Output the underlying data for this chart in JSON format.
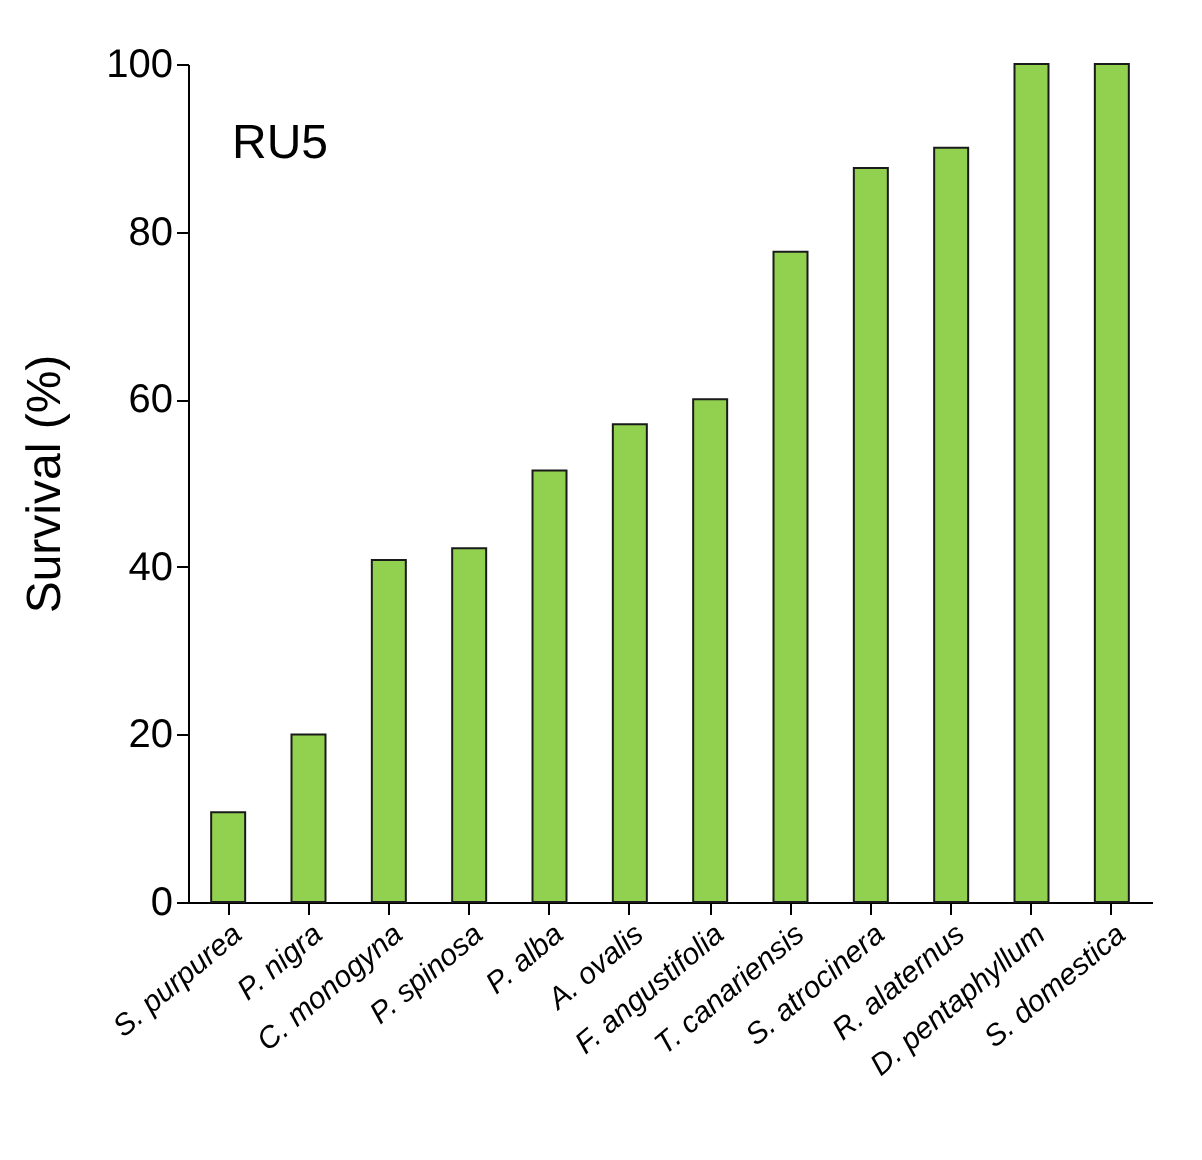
{
  "chart_data": {
    "type": "bar",
    "ylabel": "Survival (%)",
    "annotations": [
      "RU5"
    ],
    "categories": [
      "S. purpurea",
      "P. nigra",
      "C. monogyna",
      "P. spinosa",
      "P. alba",
      "A. ovalis",
      "F. angustifolia",
      "T. canariensis",
      "S. atrocinera",
      "R. alaternus",
      "D. pentaphyllum",
      "S. domestica"
    ],
    "values": [
      10.7,
      20,
      40.8,
      42.2,
      51.5,
      57,
      60,
      77.6,
      87.6,
      90,
      100,
      100
    ],
    "color": "#92d050",
    "ylim": [
      0,
      100
    ],
    "yticks": [
      0,
      20,
      40,
      60,
      80,
      100
    ]
  }
}
